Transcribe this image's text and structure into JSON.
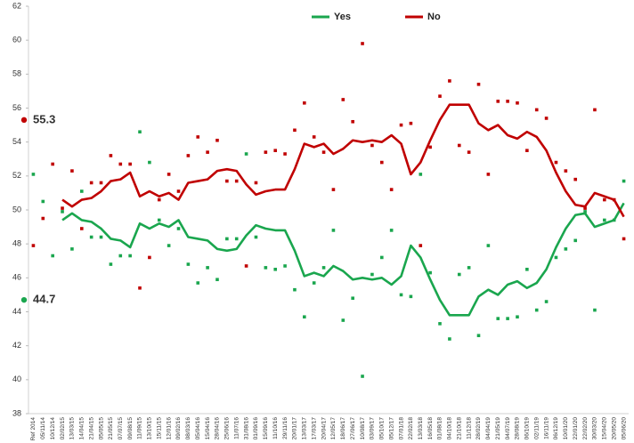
{
  "chart_data": {
    "type": "line",
    "categories": [
      "Ref 2014",
      "05/11/14",
      "10/12/14",
      "02/02/15",
      "13/03/15",
      "14/04/15",
      "21/04/15",
      "05/05/15",
      "21/05/15",
      "07/07/15",
      "09/08/15",
      "11/09/15",
      "13/10/15",
      "15/11/15",
      "12/01/16",
      "09/02/16",
      "08/03/16",
      "05/04/16",
      "15/04/16",
      "28/04/16",
      "25/06/16",
      "11/07/16",
      "31/08/16",
      "01/09/16",
      "15/09/16",
      "11/10/16",
      "29/11/16",
      "20/01/17",
      "13/03/17",
      "17/03/17",
      "20/04/17",
      "12/05/17",
      "18/06/17",
      "27/06/17",
      "10/08/17",
      "03/09/17",
      "05/10/17",
      "05/12/17",
      "07/01/18",
      "22/02/18",
      "13/03/18",
      "16/05/18",
      "01/08/18",
      "04/10/18",
      "21/10/18",
      "11/12/18",
      "28/02/19",
      "04/04/19",
      "21/05/19",
      "04/07/19",
      "28/08/19",
      "06/10/19",
      "02/11/19",
      "16/11/19",
      "06/12/19",
      "10/01/20",
      "22/01/20",
      "22/02/20",
      "30/03/20",
      "15/04/20",
      "20/05/20",
      "05/06/20"
    ],
    "series": [
      {
        "name": "Yes",
        "color": "#1aa64e",
        "values": [
          null,
          null,
          null,
          49.4,
          49.8,
          49.4,
          49.3,
          48.9,
          48.3,
          48.2,
          47.8,
          49.2,
          48.9,
          49.2,
          49.0,
          49.4,
          48.4,
          48.3,
          48.2,
          47.7,
          47.6,
          47.7,
          48.5,
          49.1,
          48.9,
          48.8,
          48.8,
          47.6,
          46.1,
          46.3,
          46.1,
          46.7,
          46.4,
          45.9,
          46.0,
          45.9,
          46.0,
          45.6,
          46.1,
          47.9,
          47.2,
          45.9,
          44.7,
          43.8,
          43.8,
          43.8,
          44.9,
          45.3,
          45.0,
          45.6,
          45.8,
          45.4,
          45.7,
          46.5,
          47.8,
          48.9,
          49.7,
          49.8,
          49.0,
          49.2,
          49.4,
          50.4
        ]
      },
      {
        "name": "No",
        "color": "#c00000",
        "values": [
          null,
          null,
          null,
          50.6,
          50.2,
          50.6,
          50.7,
          51.1,
          51.7,
          51.8,
          52.2,
          50.8,
          51.1,
          50.8,
          51.0,
          50.6,
          51.6,
          51.7,
          51.8,
          52.3,
          52.4,
          52.3,
          51.5,
          50.9,
          51.1,
          51.2,
          51.2,
          52.4,
          53.9,
          53.7,
          53.9,
          53.3,
          53.6,
          54.1,
          54.0,
          54.1,
          54.0,
          54.4,
          53.9,
          52.1,
          52.8,
          54.1,
          55.3,
          56.2,
          56.2,
          56.2,
          55.1,
          54.7,
          55.0,
          54.4,
          54.2,
          54.6,
          54.3,
          53.5,
          52.2,
          51.1,
          50.3,
          50.2,
          51.0,
          50.8,
          50.6,
          49.6
        ]
      }
    ],
    "scatter_series": [
      {
        "color": "#1aa64e",
        "values": [
          52.1,
          50.5,
          47.3,
          49.9,
          47.7,
          51.1,
          48.4,
          48.4,
          46.8,
          47.3,
          47.3,
          54.6,
          52.8,
          49.4,
          47.9,
          48.9,
          46.8,
          45.7,
          46.6,
          45.9,
          48.3,
          48.3,
          53.3,
          48.4,
          46.6,
          46.5,
          46.7,
          45.3,
          43.7,
          45.7,
          46.6,
          48.8,
          43.5,
          44.8,
          40.2,
          46.2,
          47.2,
          48.8,
          45.0,
          44.9,
          52.1,
          46.3,
          43.3,
          42.4,
          46.2,
          46.6,
          42.6,
          47.9,
          43.6,
          43.6,
          43.7,
          46.5,
          44.1,
          44.6,
          47.2,
          47.7,
          48.2,
          49.9,
          44.1,
          49.4,
          49.4,
          51.7
        ]
      },
      {
        "color": "#c00000",
        "values": [
          47.9,
          49.5,
          52.7,
          50.1,
          52.3,
          48.9,
          51.6,
          51.6,
          53.2,
          52.7,
          52.7,
          45.4,
          47.2,
          50.6,
          52.1,
          51.1,
          53.2,
          54.3,
          53.4,
          54.1,
          51.7,
          51.7,
          46.7,
          51.6,
          53.4,
          53.5,
          53.3,
          54.7,
          56.3,
          54.3,
          53.4,
          51.2,
          56.5,
          55.2,
          59.8,
          53.8,
          52.8,
          51.2,
          55.0,
          55.1,
          47.9,
          53.7,
          56.7,
          57.6,
          53.8,
          53.4,
          57.4,
          52.1,
          56.4,
          56.4,
          56.3,
          53.5,
          55.9,
          55.4,
          52.8,
          52.3,
          51.8,
          50.1,
          55.9,
          50.6,
          50.6,
          48.3
        ]
      }
    ],
    "ref_points": [
      {
        "value": 55.3,
        "color": "#c00000"
      },
      {
        "value": 44.7,
        "color": "#1aa64e"
      }
    ],
    "ylim": [
      38,
      62
    ],
    "yticks": [
      38,
      40,
      42,
      44,
      46,
      48,
      50,
      52,
      54,
      56,
      58,
      60,
      62
    ],
    "grid": false
  }
}
